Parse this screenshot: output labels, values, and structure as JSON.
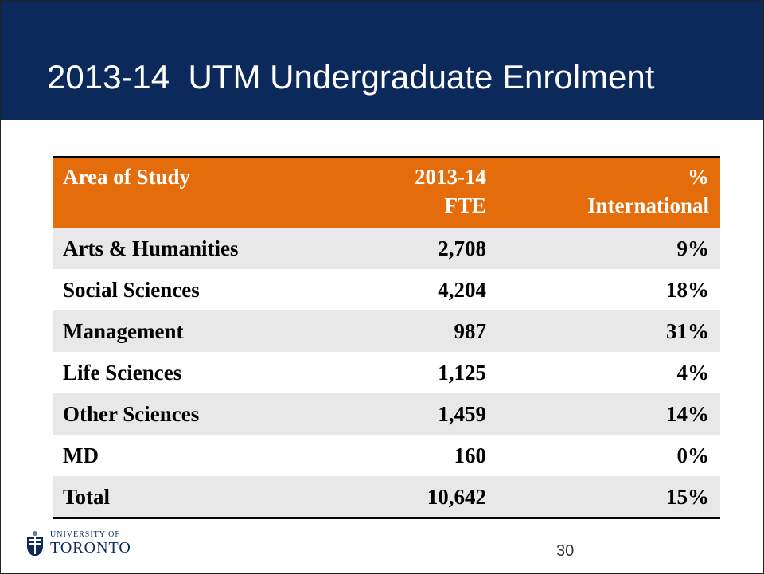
{
  "header": {
    "title": "2013-14  UTM Undergraduate Enrolment"
  },
  "table": {
    "columns": [
      {
        "lines": [
          "Area of Study"
        ]
      },
      {
        "lines": [
          "2013-14",
          "FTE"
        ]
      },
      {
        "lines": [
          "%",
          "International"
        ]
      }
    ],
    "rows": [
      [
        "Arts & Humanities",
        "2,708",
        "9%"
      ],
      [
        "Social Sciences",
        "4,204",
        "18%"
      ],
      [
        "Management",
        "987",
        "31%"
      ],
      [
        "Life Sciences",
        "1,125",
        "4%"
      ],
      [
        "Other Sciences",
        "1,459",
        "14%"
      ],
      [
        "MD",
        "160",
        "0%"
      ],
      [
        "Total",
        "10,642",
        "15%"
      ]
    ]
  },
  "footer": {
    "logo": [
      "UNIVERSITY OF",
      "TORONTO"
    ],
    "page_number": "30"
  }
}
